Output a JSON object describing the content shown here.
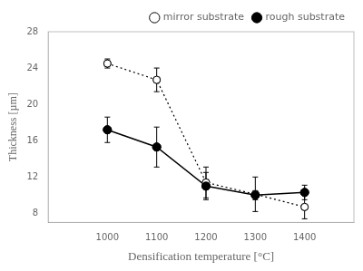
{
  "chart_data": {
    "type": "line",
    "xlabel": "Densification temperature [°C]",
    "ylabel": "Thickness [µm]",
    "x": [
      1000,
      1100,
      1200,
      1300,
      1400
    ],
    "series": [
      {
        "name": "mirror substrate",
        "color": "#000000",
        "marker": "circle_open",
        "line_style": "dotted",
        "values": [
          24.5,
          22.7,
          11.4,
          10.1,
          8.7
        ],
        "yerr": [
          0.5,
          1.3,
          1.7,
          1.9,
          1.3
        ]
      },
      {
        "name": "rough substrate",
        "color": "#000000",
        "marker": "circle",
        "line_style": "solid",
        "values": [
          17.2,
          15.3,
          11.0,
          10.0,
          10.3
        ],
        "yerr": [
          1.4,
          2.2,
          1.5,
          0.5,
          0.8
        ]
      }
    ],
    "xlim": [
      880,
      1500
    ],
    "ylim": [
      7,
      28
    ],
    "xticks": [
      1000,
      1100,
      1200,
      1300,
      1400
    ],
    "yticks": [
      8,
      12,
      16,
      20,
      24,
      28
    ],
    "grid": false,
    "legend": "upper right"
  }
}
